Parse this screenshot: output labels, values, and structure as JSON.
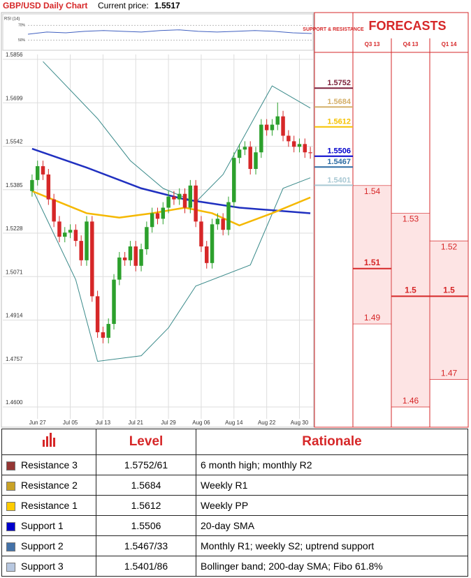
{
  "chart_data": [
    {
      "type": "candlestick",
      "title": "GBP/USD Daily Chart",
      "current_price_label": "Current price:",
      "current_price": 1.5517,
      "categories": [
        null,
        "Jun 27",
        null,
        null,
        null,
        null,
        null,
        "Jul 05",
        null,
        null,
        null,
        null,
        null,
        "Jul 13",
        null,
        null,
        null,
        null,
        null,
        "Jul 21",
        null,
        null,
        null,
        null,
        null,
        "Jul 29",
        null,
        null,
        null,
        null,
        null,
        "Aug 06",
        null,
        null,
        null,
        null,
        null,
        "Aug 14",
        null,
        null,
        null,
        null,
        null,
        "Aug 22",
        null,
        null,
        null,
        null,
        null,
        "Aug 30",
        null,
        null
      ],
      "open": [
        1.538,
        1.542,
        1.547,
        1.544,
        1.535,
        1.527,
        1.5215,
        1.523,
        1.524,
        1.52,
        1.513,
        1.527,
        1.5,
        1.487,
        1.485,
        1.49,
        1.506,
        1.514,
        1.513,
        1.518,
        1.511,
        1.517,
        1.525,
        1.53,
        1.528,
        1.532,
        1.536,
        1.535,
        1.537,
        1.532,
        1.54,
        1.527,
        1.518,
        1.512,
        1.526,
        1.528,
        1.524,
        1.534,
        1.55,
        1.553,
        1.554,
        1.546,
        1.552,
        1.562,
        1.56,
        1.562,
        1.565,
        1.558,
        1.556,
        1.554,
        1.555,
        1.552
      ],
      "high": [
        1.544,
        1.549,
        1.549,
        1.546,
        1.537,
        1.529,
        1.525,
        1.526,
        1.526,
        1.522,
        1.529,
        1.529,
        1.502,
        1.489,
        1.492,
        1.508,
        1.516,
        1.516,
        1.52,
        1.52,
        1.519,
        1.527,
        1.532,
        1.532,
        1.534,
        1.538,
        1.538,
        1.539,
        1.539,
        1.542,
        1.542,
        1.529,
        1.52,
        1.528,
        1.53,
        1.53,
        1.536,
        1.552,
        1.555,
        1.556,
        1.556,
        1.554,
        1.564,
        1.564,
        1.564,
        1.57,
        1.567,
        1.56,
        1.558,
        1.557,
        1.557,
        1.554
      ],
      "low": [
        1.536,
        1.54,
        1.542,
        1.533,
        1.525,
        1.5195,
        1.5195,
        1.521,
        1.518,
        1.511,
        1.511,
        1.498,
        1.485,
        1.483,
        1.483,
        1.488,
        1.504,
        1.511,
        1.511,
        1.509,
        1.509,
        1.515,
        1.523,
        1.526,
        1.526,
        1.53,
        1.533,
        1.533,
        1.53,
        1.53,
        1.525,
        1.516,
        1.51,
        1.51,
        1.524,
        1.522,
        1.522,
        1.532,
        1.548,
        1.551,
        1.544,
        1.544,
        1.55,
        1.558,
        1.558,
        1.56,
        1.556,
        1.554,
        1.552,
        1.552,
        1.55,
        1.5497
      ],
      "close": [
        1.542,
        1.547,
        1.544,
        1.535,
        1.527,
        1.5215,
        1.523,
        1.524,
        1.52,
        1.513,
        1.527,
        1.5,
        1.487,
        1.485,
        1.49,
        1.506,
        1.514,
        1.513,
        1.518,
        1.511,
        1.517,
        1.525,
        1.53,
        1.528,
        1.532,
        1.536,
        1.535,
        1.537,
        1.532,
        1.54,
        1.527,
        1.518,
        1.512,
        1.526,
        1.528,
        1.524,
        1.534,
        1.55,
        1.553,
        1.554,
        1.546,
        1.552,
        1.562,
        1.56,
        1.562,
        1.565,
        1.558,
        1.556,
        1.554,
        1.555,
        1.552,
        1.5517
      ],
      "up_color": "#2ca02c",
      "down_color": "#d62728",
      "ylim": [
        1.46,
        1.5856
      ],
      "yticks": [
        {
          "value": 1.46,
          "label": "1.4600"
        },
        1.4757,
        1.4914,
        1.5071,
        1.5228,
        1.5385,
        1.5542,
        1.5699,
        1.5856
      ],
      "grid": true,
      "overlays": [
        {
          "color": "#3a8a8a",
          "x": [
            2,
            12,
            18,
            24,
            30,
            35,
            41,
            44,
            51
          ],
          "values": [
            1.5848,
            1.5642,
            1.549,
            1.539,
            1.534,
            1.544,
            1.5654,
            1.576,
            1.568
          ]
        },
        {
          "color": "#3a8a8a",
          "x": [
            0,
            8,
            12,
            20,
            25,
            30,
            40,
            46,
            51
          ],
          "values": [
            1.539,
            1.506,
            1.4765,
            1.4785,
            1.4886,
            1.5037,
            1.5113,
            1.539,
            1.5428
          ]
        },
        {
          "color": "#2030c0",
          "x": [
            0,
            10,
            20,
            28,
            38,
            51
          ],
          "values": [
            1.5533,
            1.5465,
            1.539,
            1.535,
            1.532,
            1.53
          ]
        },
        {
          "color": "#f5b800",
          "x": [
            0,
            5,
            10,
            16,
            22,
            28,
            33,
            38,
            44,
            51
          ],
          "values": [
            1.538,
            1.534,
            1.53,
            1.5284,
            1.53,
            1.532,
            1.53,
            1.5256,
            1.53,
            1.5357
          ]
        }
      ],
      "levels_title": "SUPPORT & RESISTANCE",
      "levels": [
        {
          "value": 1.5752,
          "color": "#7b1f3a"
        },
        {
          "value": 1.5684,
          "color": "#d4b06a"
        },
        {
          "value": 1.5612,
          "color": "#f5c200"
        },
        {
          "value": 1.5506,
          "color": "#0000cc"
        },
        {
          "value": 1.5467,
          "color": "#2e6da4"
        },
        {
          "value": 1.5401,
          "color": "#a9c9d4"
        }
      ]
    },
    {
      "type": "line",
      "title": "RSI (14)",
      "values": [
        58,
        61,
        60,
        62,
        63,
        62,
        61,
        63,
        64,
        62,
        61,
        62,
        63,
        62,
        60,
        59
      ],
      "color": "#4060c0",
      "ylim": [
        40,
        78
      ],
      "yticks": [
        {
          "value": 70,
          "label": "70%"
        },
        {
          "value": 50,
          "label": "50%"
        }
      ]
    },
    {
      "type": "range",
      "title": "FORECASTS",
      "color": "#d62728",
      "columns": [
        {
          "name": "Q3 13",
          "high": 1.54,
          "mid": 1.51,
          "low": 1.49
        },
        {
          "name": "Q4 13",
          "high": 1.53,
          "mid": 1.5,
          "low": 1.46
        },
        {
          "name": "Q1 14",
          "high": 1.52,
          "mid": 1.5,
          "low": 1.47
        }
      ]
    }
  ],
  "table": {
    "header": [
      "Level",
      "Rationale"
    ],
    "rows": [
      {
        "name": "Resistance 3",
        "color": "#943634",
        "level": "1.5752/61",
        "rationale": "6 month high; monthly R2"
      },
      {
        "name": "Resistance 2",
        "color": "#c9a227",
        "level": "1.5684",
        "rationale": "Weekly R1"
      },
      {
        "name": "Resistance 1",
        "color": "#ffcc00",
        "level": "1.5612",
        "rationale": "Weekly PP"
      },
      {
        "name": "Support 1",
        "color": "#0000cc",
        "level": "1.5506",
        "rationale": "20-day SMA"
      },
      {
        "name": "Support 2",
        "color": "#4472a8",
        "level": "1.5467/33",
        "rationale": "Monthly R1; weekly S2; uptrend support"
      },
      {
        "name": "Support 3",
        "color": "#b8c8e0",
        "level": "1.5401/86",
        "rationale": "Bollinger band; 200-day SMA; Fibo 61.8%"
      }
    ]
  }
}
